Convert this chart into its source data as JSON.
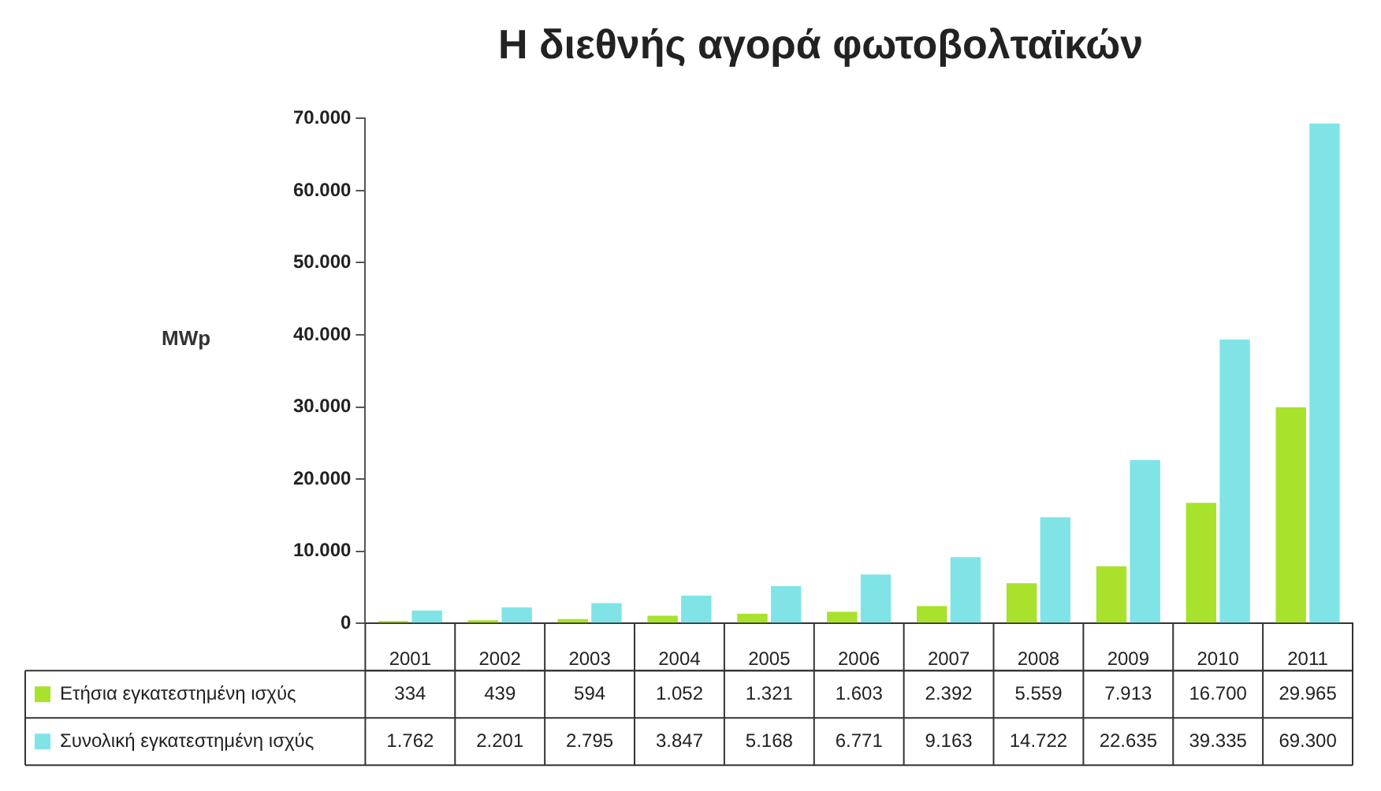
{
  "chart_data": {
    "type": "bar",
    "title": "Η διεθνής αγορά φωτοβολταϊκών",
    "ylabel": "MWp",
    "categories": [
      "2001",
      "2002",
      "2003",
      "2004",
      "2005",
      "2006",
      "2007",
      "2008",
      "2009",
      "2010",
      "2011"
    ],
    "series": [
      {
        "name": "Ετήσια εγκατεστημένη ισχύς",
        "color": "#a8e22c",
        "values": [
          334,
          439,
          594,
          1052,
          1321,
          1603,
          2392,
          5559,
          7913,
          16700,
          29965
        ],
        "value_labels": [
          "334",
          "439",
          "594",
          "1.052",
          "1.321",
          "1.603",
          "2.392",
          "5.559",
          "7.913",
          "16.700",
          "29.965"
        ]
      },
      {
        "name": "Συνολική εγκατεστημένη ισχύς",
        "color": "#80e4e6",
        "values": [
          1762,
          2201,
          2795,
          3847,
          5168,
          6771,
          9163,
          14722,
          22635,
          39335,
          69300
        ],
        "value_labels": [
          "1.762",
          "2.201",
          "2.795",
          "3.847",
          "5.168",
          "6.771",
          "9.163",
          "14.722",
          "22.635",
          "39.335",
          "69.300"
        ]
      }
    ],
    "ylim": [
      0,
      70000
    ],
    "yticks": [
      {
        "value": 0,
        "label": "0"
      },
      {
        "value": 10000,
        "label": "10.000"
      },
      {
        "value": 20000,
        "label": "20.000"
      },
      {
        "value": 30000,
        "label": "30.000"
      },
      {
        "value": 40000,
        "label": "40.000"
      },
      {
        "value": 50000,
        "label": "50.000"
      },
      {
        "value": 60000,
        "label": "60.000"
      },
      {
        "value": 70000,
        "label": "70.000"
      }
    ],
    "grid": false,
    "legend": "bottom left"
  }
}
